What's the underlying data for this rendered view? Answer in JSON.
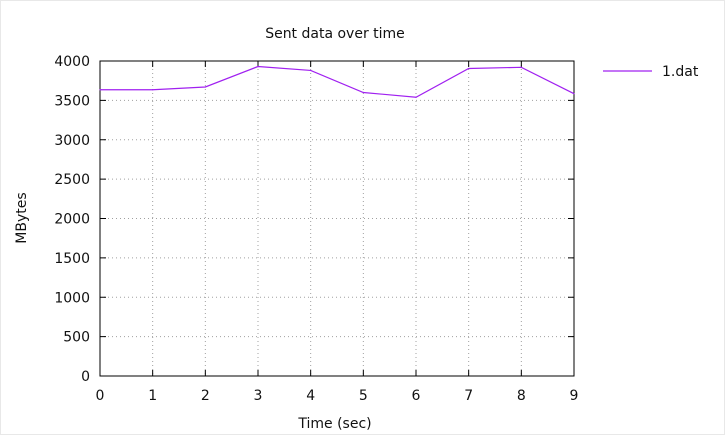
{
  "chart_data": {
    "type": "line",
    "title": "Sent data over time",
    "xlabel": "Time (sec)",
    "ylabel": "MBytes",
    "xlim": [
      0,
      9
    ],
    "ylim": [
      0,
      4000
    ],
    "xticks": [
      "0",
      "1",
      "2",
      "3",
      "4",
      "5",
      "6",
      "7",
      "8",
      "9"
    ],
    "yticks": [
      "0",
      "500",
      "1000",
      "1500",
      "2000",
      "2500",
      "3000",
      "3500",
      "4000"
    ],
    "grid": true,
    "legend_position": "top-right",
    "series": [
      {
        "name": "1.dat",
        "color": "#a020f0",
        "x": [
          0,
          1,
          2,
          3,
          4,
          5,
          6,
          7,
          8,
          9
        ],
        "y": [
          3635,
          3635,
          3670,
          3930,
          3880,
          3600,
          3540,
          3905,
          3920,
          3585
        ]
      }
    ]
  }
}
